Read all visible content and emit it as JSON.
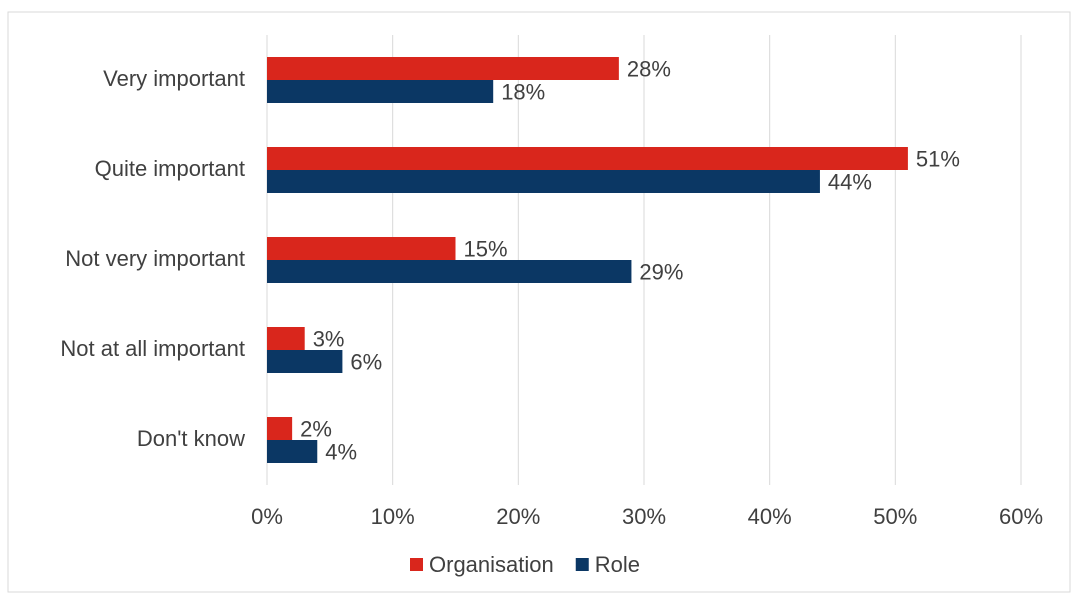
{
  "chart_data": {
    "type": "hbar",
    "categories": [
      "Very important",
      "Quite important",
      "Not very important",
      "Not at all important",
      "Don't know"
    ],
    "series": [
      {
        "name": "Organisation",
        "color": "#d9261c",
        "values": [
          28,
          51,
          15,
          3,
          2
        ],
        "value_labels": [
          "28%",
          "51%",
          "15%",
          "3%",
          "2%"
        ]
      },
      {
        "name": "Role",
        "color": "#0b3764",
        "values": [
          18,
          44,
          29,
          6,
          4
        ],
        "value_labels": [
          "18%",
          "44%",
          "29%",
          "6%",
          "4%"
        ]
      }
    ],
    "xlim": [
      0,
      60
    ],
    "xticks": [
      {
        "value": 0,
        "label": "0%"
      },
      {
        "value": 10,
        "label": "10%"
      },
      {
        "value": 20,
        "label": "20%"
      },
      {
        "value": 30,
        "label": "30%"
      },
      {
        "value": 40,
        "label": "40%"
      },
      {
        "value": 50,
        "label": "50%"
      },
      {
        "value": 60,
        "label": "60%"
      }
    ],
    "grid": true,
    "legend": "bottom"
  }
}
